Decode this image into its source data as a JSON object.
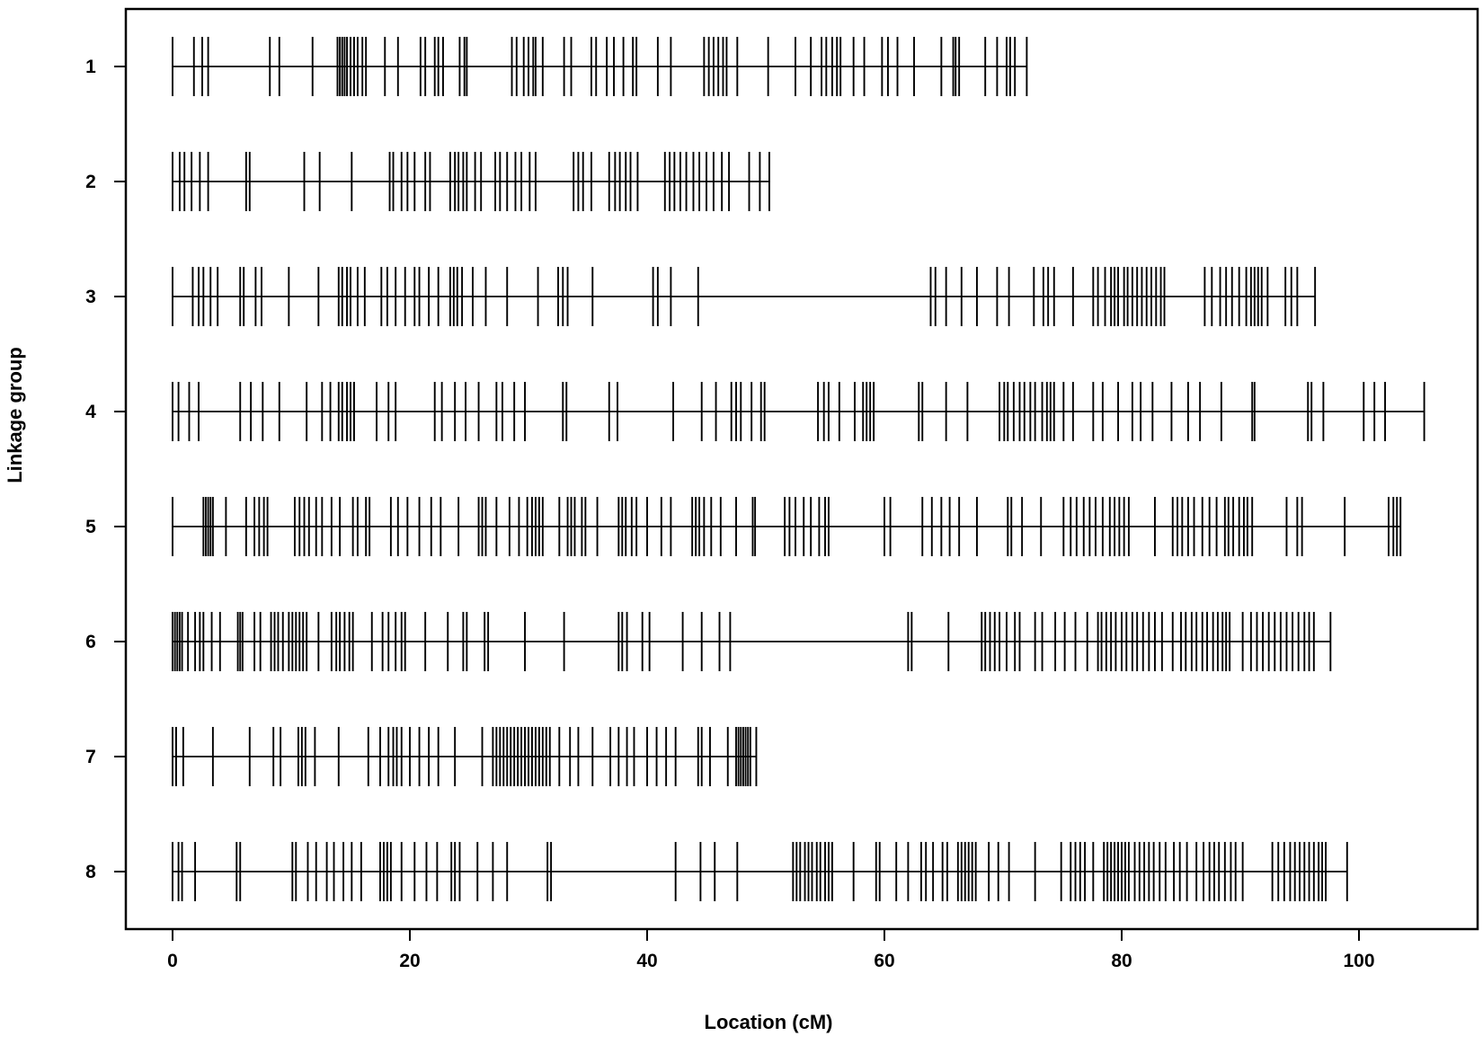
{
  "chart_data": {
    "type": "linkage-map",
    "title": "",
    "xlabel": "Location (cM)",
    "ylabel": "Linkage group",
    "xlim": [
      -2,
      110
    ],
    "xticks": [
      0,
      20,
      40,
      60,
      80,
      100
    ],
    "grid": false,
    "legend": "none",
    "line_color": "#000000",
    "groups": [
      {
        "label": "1",
        "length": 72.0,
        "markers": [
          0.0,
          1.8,
          2.5,
          3.0,
          8.2,
          9.0,
          11.8,
          13.9,
          14.1,
          14.3,
          14.5,
          14.7,
          15.0,
          15.3,
          15.6,
          16.0,
          16.3,
          17.9,
          19.0,
          20.9,
          21.3,
          22.1,
          22.4,
          22.8,
          24.2,
          24.6,
          24.8,
          28.6,
          29.0,
          29.6,
          30.0,
          30.4,
          30.6,
          31.2,
          33.0,
          33.6,
          35.3,
          35.7,
          36.6,
          37.2,
          38.0,
          38.8,
          39.1,
          40.9,
          42.0,
          44.8,
          45.2,
          45.6,
          46.0,
          46.4,
          46.7,
          47.6,
          50.2,
          52.5,
          53.8,
          54.7,
          55.1,
          55.6,
          56.0,
          56.3,
          57.4,
          58.3,
          59.8,
          60.3,
          61.1,
          62.5,
          64.8,
          65.8,
          66.0,
          66.3,
          68.5,
          69.5,
          70.3,
          70.6,
          71.0,
          72.0
        ]
      },
      {
        "label": "2",
        "length": 50.3,
        "markers": [
          0.0,
          0.6,
          1.0,
          1.6,
          2.3,
          3.0,
          6.2,
          6.5,
          11.1,
          12.4,
          15.1,
          18.3,
          18.6,
          19.3,
          19.8,
          20.4,
          21.3,
          21.7,
          23.4,
          23.8,
          24.1,
          24.5,
          24.8,
          25.5,
          26.0,
          27.2,
          27.6,
          28.2,
          28.9,
          29.4,
          30.1,
          30.6,
          33.8,
          34.2,
          34.6,
          35.3,
          36.8,
          37.3,
          37.7,
          38.2,
          38.6,
          39.2,
          41.5,
          41.9,
          42.3,
          42.8,
          43.3,
          43.9,
          44.4,
          45.0,
          45.6,
          46.3,
          46.9,
          48.6,
          49.5,
          50.3
        ]
      },
      {
        "label": "3",
        "length": 96.3,
        "markers": [
          0.0,
          1.7,
          2.2,
          2.6,
          3.2,
          3.8,
          5.7,
          6.0,
          7.0,
          7.5,
          9.8,
          12.3,
          14.0,
          14.3,
          14.7,
          15.0,
          15.6,
          16.2,
          17.6,
          18.1,
          18.8,
          19.6,
          20.4,
          20.8,
          21.6,
          22.4,
          23.4,
          23.7,
          24.0,
          24.4,
          25.3,
          26.4,
          28.2,
          30.8,
          32.5,
          32.9,
          33.3,
          35.4,
          40.5,
          40.9,
          42.0,
          44.3,
          63.9,
          64.3,
          65.2,
          66.5,
          67.8,
          69.5,
          70.5,
          72.6,
          73.4,
          73.8,
          74.3,
          75.9,
          77.6,
          78.0,
          78.6,
          79.1,
          79.4,
          79.7,
          80.2,
          80.5,
          80.9,
          81.3,
          81.7,
          82.1,
          82.5,
          82.9,
          83.3,
          83.6,
          87.0,
          87.6,
          88.3,
          88.8,
          89.3,
          89.9,
          90.5,
          90.9,
          91.2,
          91.5,
          91.8,
          92.3,
          93.8,
          94.3,
          94.8,
          96.3
        ]
      },
      {
        "label": "4",
        "length": 105.5,
        "markers": [
          0.0,
          0.5,
          1.4,
          2.2,
          5.7,
          6.6,
          7.6,
          9.0,
          11.3,
          12.6,
          13.3,
          14.0,
          14.3,
          14.7,
          15.0,
          15.3,
          17.2,
          18.2,
          18.8,
          22.1,
          22.7,
          23.8,
          24.7,
          25.8,
          27.3,
          27.8,
          28.8,
          29.7,
          32.9,
          33.2,
          36.8,
          37.5,
          42.2,
          44.6,
          45.8,
          47.1,
          47.5,
          47.9,
          48.8,
          49.6,
          49.9,
          54.4,
          54.9,
          55.3,
          56.2,
          57.5,
          58.2,
          58.5,
          58.8,
          59.1,
          62.9,
          63.2,
          65.2,
          67.0,
          69.7,
          70.1,
          70.4,
          70.9,
          71.4,
          71.8,
          72.3,
          72.7,
          73.3,
          73.7,
          74.0,
          74.3,
          75.1,
          75.9,
          77.6,
          78.4,
          79.7,
          80.9,
          81.6,
          82.6,
          84.2,
          85.6,
          86.6,
          88.4,
          91.0,
          91.2,
          95.7,
          96.0,
          97.0,
          100.4,
          101.3,
          102.2,
          105.5
        ]
      },
      {
        "label": "5",
        "length": 103.5,
        "markers": [
          0.0,
          2.6,
          2.8,
          3.0,
          3.2,
          3.4,
          4.5,
          6.2,
          6.9,
          7.3,
          7.7,
          8.0,
          10.3,
          10.7,
          11.1,
          11.5,
          12.1,
          12.6,
          13.4,
          14.1,
          15.2,
          15.6,
          16.3,
          16.6,
          18.4,
          19.0,
          19.8,
          20.8,
          21.8,
          22.6,
          24.1,
          25.8,
          26.1,
          26.4,
          27.3,
          28.4,
          29.2,
          29.9,
          30.3,
          30.6,
          30.9,
          31.2,
          32.6,
          33.3,
          33.6,
          33.9,
          34.5,
          34.8,
          35.8,
          37.6,
          37.9,
          38.2,
          38.7,
          39.1,
          40.0,
          41.2,
          42.0,
          43.8,
          44.1,
          44.4,
          44.8,
          45.4,
          46.2,
          47.5,
          48.9,
          49.1,
          51.6,
          52.0,
          52.5,
          53.2,
          53.8,
          54.5,
          55.0,
          55.3,
          60.0,
          60.5,
          63.2,
          64.0,
          64.8,
          65.5,
          66.3,
          67.8,
          70.4,
          70.7,
          71.6,
          73.2,
          75.1,
          75.7,
          76.2,
          76.8,
          77.3,
          77.8,
          78.4,
          79.0,
          79.4,
          79.8,
          80.2,
          80.6,
          82.8,
          84.3,
          84.7,
          85.1,
          85.6,
          86.1,
          86.8,
          87.4,
          88.0,
          88.7,
          89.0,
          89.4,
          89.9,
          90.3,
          90.6,
          91.0,
          93.9,
          94.8,
          95.2,
          98.8,
          102.5,
          102.9,
          103.2,
          103.5
        ]
      },
      {
        "label": "6",
        "length": 97.6,
        "markers": [
          0.0,
          0.2,
          0.4,
          0.6,
          0.8,
          1.3,
          1.9,
          2.3,
          2.6,
          3.3,
          4.0,
          5.5,
          5.7,
          5.9,
          6.9,
          7.4,
          8.3,
          8.6,
          8.9,
          9.3,
          9.8,
          10.1,
          10.4,
          10.7,
          11.0,
          11.3,
          12.3,
          13.4,
          13.8,
          14.1,
          14.5,
          14.9,
          15.2,
          16.8,
          17.7,
          18.2,
          18.8,
          19.3,
          19.6,
          21.3,
          23.2,
          24.5,
          24.8,
          26.3,
          26.6,
          29.7,
          33.0,
          37.6,
          37.9,
          38.3,
          39.6,
          40.2,
          43.0,
          44.6,
          46.1,
          47.0,
          62.0,
          62.3,
          65.4,
          68.2,
          68.5,
          68.9,
          69.3,
          69.7,
          70.3,
          71.0,
          71.4,
          72.7,
          73.3,
          74.4,
          75.2,
          76.1,
          77.1,
          78.0,
          78.3,
          78.7,
          79.1,
          79.5,
          80.0,
          80.4,
          80.9,
          81.3,
          81.8,
          82.3,
          82.8,
          83.4,
          84.3,
          85.0,
          85.4,
          85.9,
          86.3,
          86.8,
          87.2,
          87.7,
          88.1,
          88.5,
          88.8,
          89.1,
          90.2,
          90.9,
          91.4,
          91.9,
          92.4,
          92.9,
          93.4,
          93.9,
          94.4,
          94.9,
          95.4,
          95.8,
          96.2,
          97.6
        ]
      },
      {
        "label": "7",
        "length": 49.2,
        "markers": [
          0.0,
          0.3,
          0.9,
          3.4,
          6.5,
          8.5,
          9.1,
          10.6,
          10.9,
          11.2,
          12.0,
          14.0,
          16.5,
          17.5,
          18.2,
          18.6,
          18.9,
          19.3,
          20.0,
          20.8,
          21.6,
          22.4,
          23.8,
          26.1,
          27.0,
          27.3,
          27.6,
          27.9,
          28.2,
          28.5,
          28.8,
          29.1,
          29.4,
          29.7,
          30.0,
          30.3,
          30.6,
          30.9,
          31.2,
          31.5,
          31.8,
          32.6,
          33.5,
          34.2,
          35.4,
          36.9,
          37.6,
          38.3,
          38.9,
          40.0,
          40.8,
          41.6,
          42.4,
          44.3,
          44.6,
          45.3,
          46.8,
          47.5,
          47.7,
          47.9,
          48.1,
          48.3,
          48.5,
          48.7,
          49.2
        ]
      },
      {
        "label": "8",
        "length": 99.0,
        "markers": [
          0.0,
          0.5,
          0.8,
          1.9,
          5.4,
          5.7,
          10.1,
          10.4,
          11.4,
          12.1,
          13.0,
          13.6,
          14.4,
          15.1,
          15.9,
          17.5,
          17.8,
          18.1,
          18.4,
          19.3,
          20.4,
          21.4,
          22.3,
          23.5,
          23.8,
          24.2,
          25.7,
          27.0,
          28.2,
          31.6,
          31.9,
          42.4,
          44.5,
          45.7,
          47.6,
          52.3,
          52.6,
          52.9,
          53.3,
          53.6,
          53.9,
          54.3,
          54.6,
          55.0,
          55.3,
          55.6,
          57.4,
          59.3,
          59.6,
          61.0,
          62.0,
          63.1,
          63.5,
          64.1,
          64.9,
          65.3,
          66.2,
          66.5,
          66.8,
          67.1,
          67.4,
          67.7,
          68.8,
          69.6,
          70.5,
          72.7,
          74.9,
          75.7,
          76.1,
          76.5,
          76.9,
          77.6,
          78.5,
          78.8,
          79.1,
          79.4,
          79.7,
          80.0,
          80.3,
          80.6,
          81.1,
          81.5,
          81.9,
          82.3,
          82.7,
          83.2,
          83.7,
          84.4,
          84.9,
          85.5,
          86.3,
          86.9,
          87.4,
          87.8,
          88.2,
          88.7,
          89.2,
          89.6,
          90.2,
          92.7,
          93.2,
          93.7,
          94.2,
          94.6,
          95.0,
          95.4,
          95.8,
          96.2,
          96.6,
          96.9,
          97.2,
          99.0
        ]
      }
    ]
  }
}
